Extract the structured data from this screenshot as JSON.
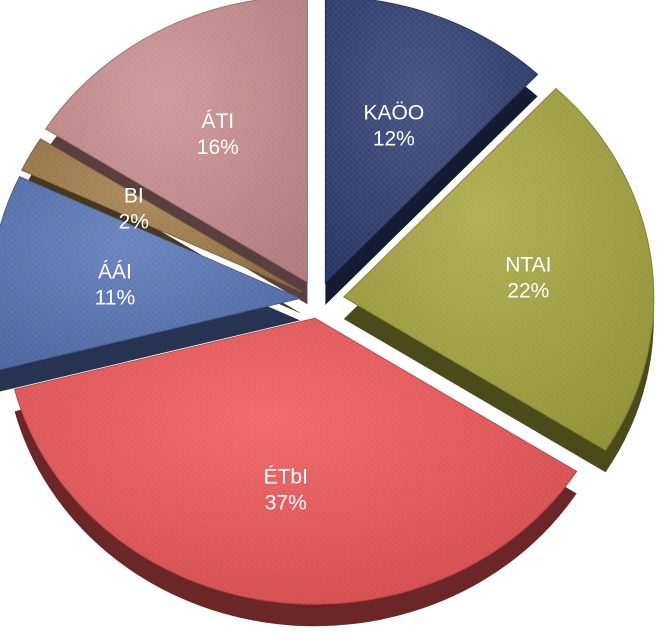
{
  "chart_data": {
    "type": "pie",
    "style": "3d-exploded",
    "title": "",
    "categories": [
      "KAÖO",
      "NTAI",
      "ÉTbI",
      "ÁÁI",
      "BI",
      "ÁTI"
    ],
    "values": [
      12,
      22,
      37,
      11,
      2,
      16
    ],
    "value_labels": [
      "12%",
      "22%",
      "37%",
      "11%",
      "2%",
      "16%"
    ],
    "colors": [
      "#2c3c70",
      "#a5a43c",
      "#ee5456",
      "#5573b5",
      "#a07a47",
      "#c98d8f"
    ],
    "legend": "none",
    "labels_inside_slices": true
  }
}
